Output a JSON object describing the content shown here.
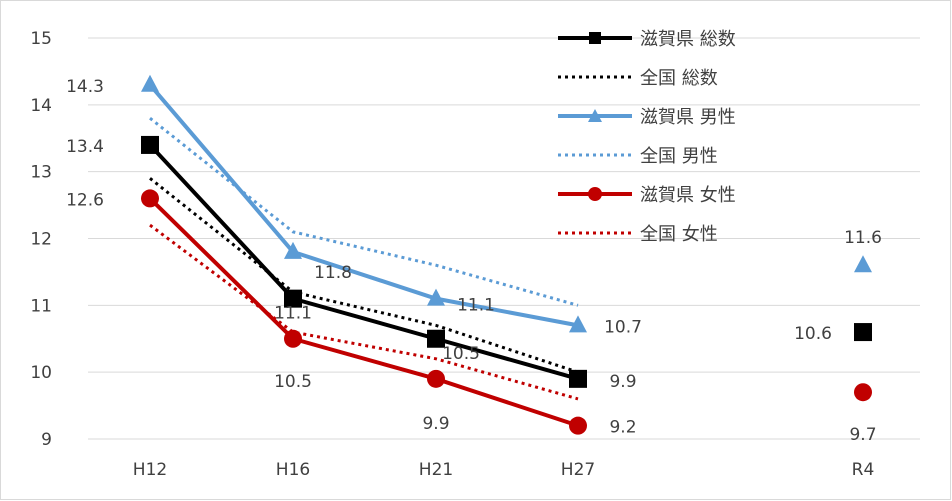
{
  "chart_data": {
    "type": "line",
    "title": "",
    "xlabel": "",
    "ylabel": "",
    "ylim": [
      9,
      15
    ],
    "yticks": [
      "9",
      "10",
      "11",
      "12",
      "13",
      "14",
      "15"
    ],
    "categories": [
      "H12",
      "H16",
      "H21",
      "H27",
      "R4"
    ],
    "grid": true,
    "legend_position": "top-right",
    "series": [
      {
        "name": "滋賀県 総数",
        "color": "#000000",
        "style": "solid",
        "marker": "square",
        "values": [
          13.4,
          11.1,
          10.5,
          9.9,
          10.6
        ],
        "labels": [
          "13.4",
          "11.1",
          "10.5",
          "9.9",
          "10.6"
        ]
      },
      {
        "name": "全国 総数",
        "color": "#000000",
        "style": "dotted",
        "marker": "none",
        "values": [
          12.9,
          11.2,
          10.7,
          10.0,
          null
        ],
        "labels": []
      },
      {
        "name": "滋賀県 男性",
        "color": "#5b9bd5",
        "style": "solid",
        "marker": "triangle",
        "values": [
          14.3,
          11.8,
          11.1,
          10.7,
          11.6
        ],
        "labels": [
          "14.3",
          "11.8",
          "11.1",
          "10.7",
          "11.6"
        ]
      },
      {
        "name": "全国 男性",
        "color": "#5b9bd5",
        "style": "dotted",
        "marker": "none",
        "values": [
          13.8,
          12.1,
          11.6,
          11.0,
          null
        ],
        "labels": []
      },
      {
        "name": "滋賀県 女性",
        "color": "#c00000",
        "style": "solid",
        "marker": "circle",
        "values": [
          12.6,
          10.5,
          9.9,
          9.2,
          9.7
        ],
        "labels": [
          "12.6",
          "10.5",
          "9.9",
          "9.2",
          "9.7"
        ]
      },
      {
        "name": "全国 女性",
        "color": "#c00000",
        "style": "dotted",
        "marker": "none",
        "values": [
          12.2,
          10.6,
          10.2,
          9.6,
          null
        ],
        "labels": []
      }
    ],
    "connected_points": 4
  }
}
